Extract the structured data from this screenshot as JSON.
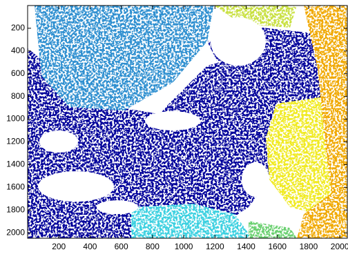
{
  "chart_data": {
    "type": "image",
    "xlim": [
      0,
      2048
    ],
    "ylim": [
      2048,
      0
    ],
    "xticks": [
      200,
      400,
      600,
      800,
      1000,
      1200,
      1400,
      1600,
      1800,
      2000
    ],
    "yticks": [
      200,
      400,
      600,
      800,
      1000,
      1200,
      1400,
      1600,
      1800,
      2000
    ]
  }
}
